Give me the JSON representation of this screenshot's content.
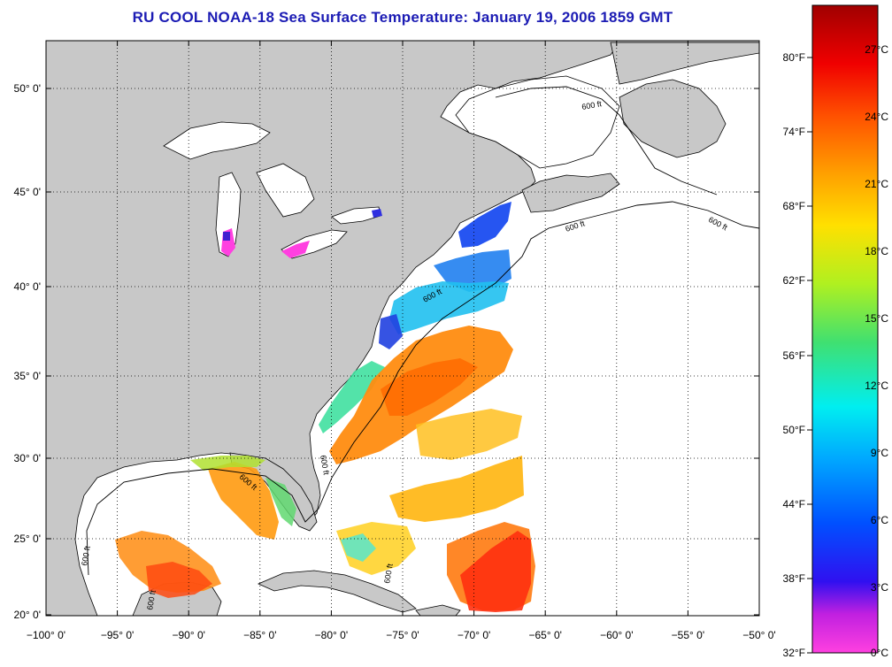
{
  "title": "RU COOL  NOAA-18  Sea Surface Temperature:  January 19, 2006 1859 GMT",
  "map": {
    "lon_range": [
      -100,
      -50
    ],
    "lat_range": [
      20,
      52.5
    ],
    "lon_ticks": [
      "−100° 0'",
      "−95° 0'",
      "−90° 0'",
      "−85° 0'",
      "−80° 0'",
      "−75° 0'",
      "−70° 0'",
      "−65° 0'",
      "−60° 0'",
      "−55° 0'",
      "−50° 0'"
    ],
    "lat_ticks": [
      "20° 0'",
      "25° 0'",
      "30° 0'",
      "35° 0'",
      "40° 0'",
      "45° 0'",
      "50° 0'"
    ],
    "contour_label": "600 ft",
    "land_color": "#c8c8c8",
    "water_color": "#ffffff"
  },
  "colorbar": {
    "fahrenheit_labels": [
      "80°F",
      "74°F",
      "68°F",
      "62°F",
      "56°F",
      "50°F",
      "44°F",
      "38°F",
      "32°F"
    ],
    "celsius_labels": [
      "27°C",
      "24°C",
      "21°C",
      "18°C",
      "15°C",
      "12°C",
      "9°C",
      "6°C",
      "3°C",
      "0°C"
    ],
    "colors": [
      "#a00000",
      "#ff0000",
      "#ff8000",
      "#ffd000",
      "#c8f000",
      "#40e060",
      "#00e8e8",
      "#00a0ff",
      "#1030ff",
      "#0000e0",
      "#9000d0",
      "#ff40e0"
    ]
  }
}
